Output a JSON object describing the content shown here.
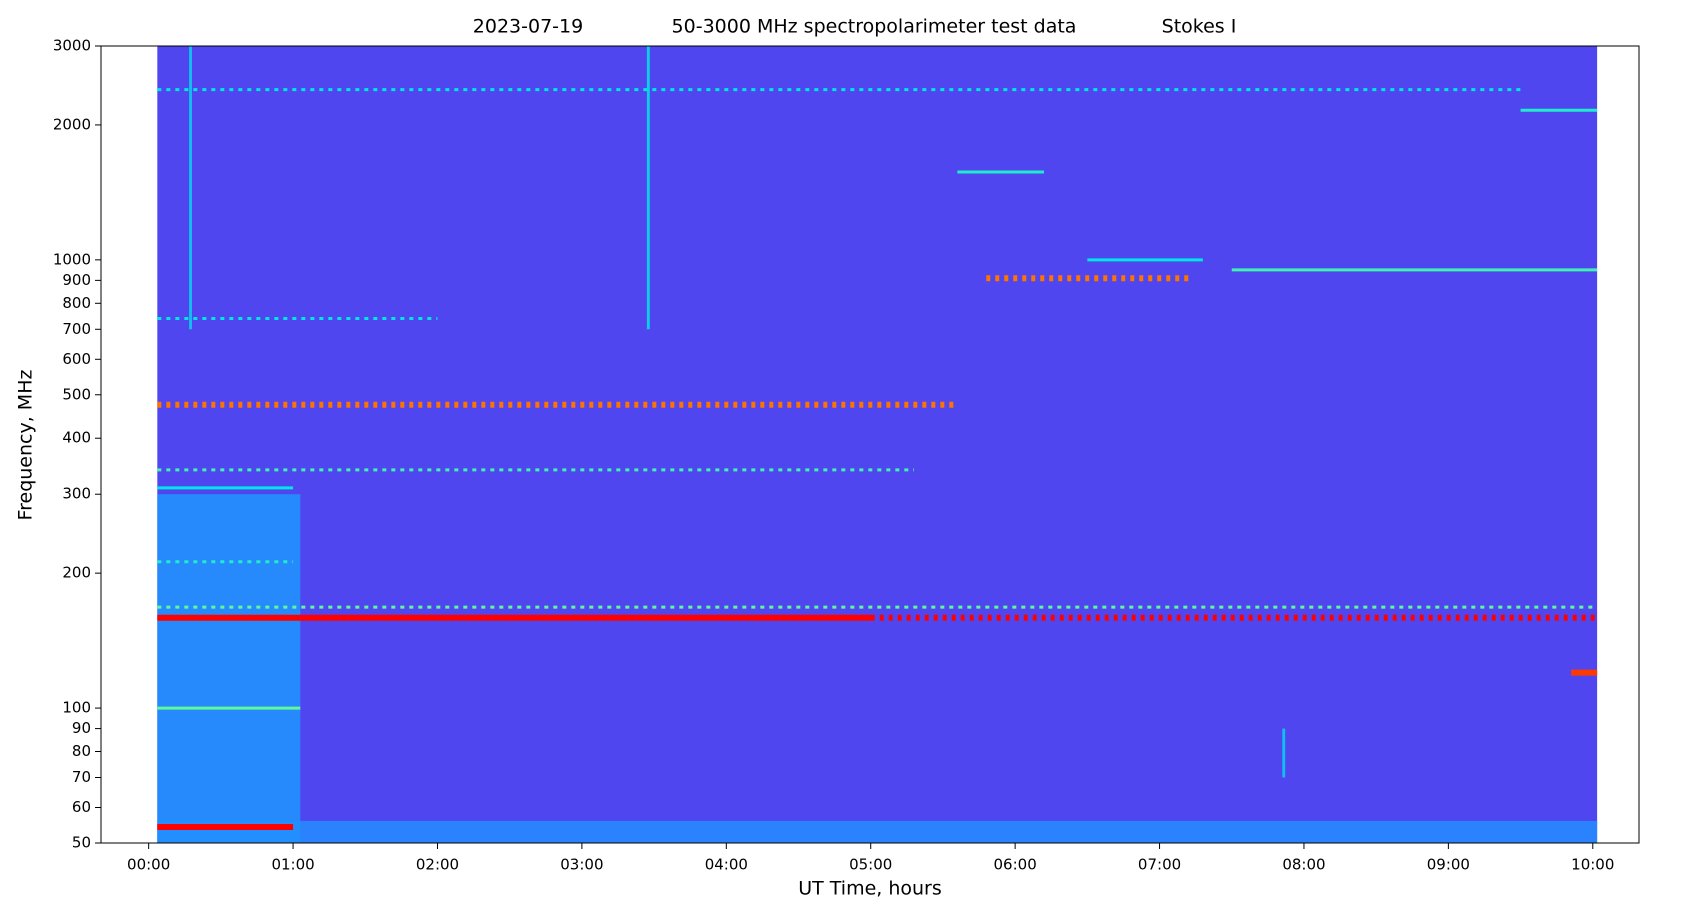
{
  "chart_data": {
    "type": "spectrogram",
    "title": [
      "2023-07-19",
      "50-3000 MHz spectropolarimeter test data",
      "Stokes I"
    ],
    "x_label": "UT Time, hours",
    "y_label": "Frequency, MHz",
    "log_y": true,
    "xlim": [
      -0.33,
      10.32
    ],
    "ylim": [
      50,
      3000
    ],
    "data_extent": [
      0.06,
      10.03
    ],
    "colormap": [
      "#5046f0",
      "#1e96ff",
      "#00e6e6",
      "#80ff80",
      "#ffe600",
      "#ff0000"
    ],
    "xticks": [
      {
        "value": 0,
        "label": "00:00"
      },
      {
        "value": 1,
        "label": "01:00"
      },
      {
        "value": 2,
        "label": "02:00"
      },
      {
        "value": 3,
        "label": "03:00"
      },
      {
        "value": 4,
        "label": "04:00"
      },
      {
        "value": 5,
        "label": "05:00"
      },
      {
        "value": 6,
        "label": "06:00"
      },
      {
        "value": 7,
        "label": "07:00"
      },
      {
        "value": 8,
        "label": "08:00"
      },
      {
        "value": 9,
        "label": "09:00"
      },
      {
        "value": 10,
        "label": "10:00"
      }
    ],
    "yticks": [
      50,
      60,
      70,
      80,
      90,
      100,
      200,
      300,
      400,
      500,
      600,
      700,
      800,
      900,
      1000,
      2000,
      3000
    ],
    "patches": [
      {
        "t0": 0.06,
        "t1": 1.05,
        "f0": 50,
        "f1": 300,
        "level": 0.2
      },
      {
        "t0": 0.06,
        "t1": 10.03,
        "f0": 50,
        "f1": 56,
        "level": 0.18
      },
      {
        "t0": 3.45,
        "t1": 3.47,
        "f0": 700,
        "f1": 3000,
        "level": 0.4
      },
      {
        "t0": 0.28,
        "t1": 0.3,
        "f0": 700,
        "f1": 3000,
        "level": 0.35
      },
      {
        "t0": 7.85,
        "t1": 7.87,
        "f0": 70,
        "f1": 90,
        "level": 0.35
      }
    ],
    "bands": [
      {
        "freq": 159,
        "start": 0.06,
        "end": 5.0,
        "level": 1,
        "dotted": false
      },
      {
        "freq": 159,
        "start": 5.0,
        "end": 10.03,
        "level": 1,
        "dotted": true
      },
      {
        "freq": 168,
        "start": 0.06,
        "end": 10.03,
        "level": 0.55,
        "dotted": true
      },
      {
        "freq": 54.3,
        "start": 0.06,
        "end": 1.0,
        "level": 1,
        "dotted": false
      },
      {
        "freq": 100,
        "start": 0.06,
        "end": 1.05,
        "level": 0.55,
        "dotted": false
      },
      {
        "freq": 475,
        "start": 0.06,
        "end": 5.6,
        "level": 0.9,
        "dotted": true
      },
      {
        "freq": 340,
        "start": 0.06,
        "end": 5.3,
        "level": 0.5,
        "dotted": true
      },
      {
        "freq": 950,
        "start": 7.5,
        "end": 10.03,
        "level": 0.5,
        "dotted": false
      },
      {
        "freq": 2157,
        "start": 9.5,
        "end": 10.03,
        "level": 0.45,
        "dotted": false
      },
      {
        "freq": 2397,
        "start": 0.06,
        "end": 9.5,
        "level": 0.4,
        "dotted": true
      },
      {
        "freq": 1570,
        "start": 5.6,
        "end": 6.2,
        "level": 0.45,
        "dotted": false
      },
      {
        "freq": 1000,
        "start": 6.5,
        "end": 7.3,
        "level": 0.4,
        "dotted": false
      },
      {
        "freq": 212,
        "start": 0.06,
        "end": 1.0,
        "level": 0.45,
        "dotted": true
      },
      {
        "freq": 310,
        "start": 0.06,
        "end": 1.0,
        "level": 0.4,
        "dotted": false
      },
      {
        "freq": 120,
        "start": 9.85,
        "end": 10.03,
        "level": 0.95,
        "dotted": false
      },
      {
        "freq": 910,
        "start": 5.8,
        "end": 7.2,
        "level": 0.9,
        "dotted": true
      },
      {
        "freq": 740,
        "start": 0.06,
        "end": 2.0,
        "level": 0.4,
        "dotted": true
      }
    ]
  }
}
